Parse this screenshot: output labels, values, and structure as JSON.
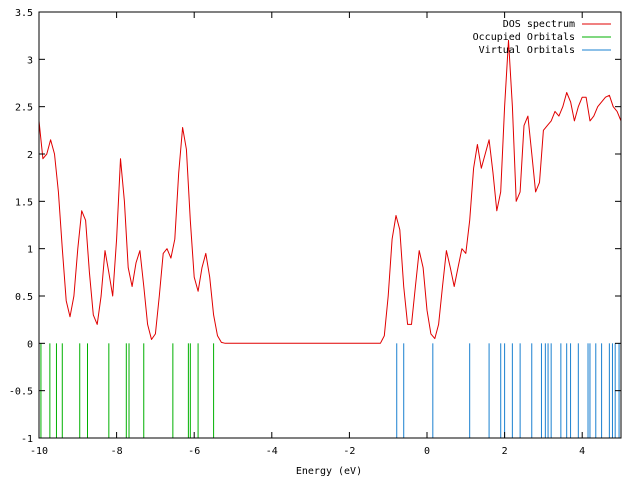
{
  "chart_data": {
    "type": "line",
    "xlabel": "Energy (eV)",
    "ylabel": "",
    "xlim": [
      -10,
      5
    ],
    "ylim": [
      -1,
      3.5
    ],
    "x_ticks": [
      -10,
      -8,
      -6,
      -4,
      -2,
      0,
      2,
      4
    ],
    "x_tick_labels": [
      "-10",
      "-8",
      "-6",
      "-4",
      "-2",
      "0",
      "2",
      "4"
    ],
    "y_ticks": [
      -1,
      -0.5,
      0,
      0.5,
      1,
      1.5,
      2,
      2.5,
      3,
      3.5
    ],
    "y_tick_labels": [
      "-1",
      "-0.5",
      "0",
      "0.5",
      "1",
      "1.5",
      "2",
      "2.5",
      "3",
      "3.5"
    ],
    "grid": false,
    "legend_position": "top-right",
    "series": [
      {
        "name": "DOS spectrum",
        "color": "#e00000",
        "kind": "line",
        "x": [
          -10.0,
          -9.9,
          -9.8,
          -9.7,
          -9.6,
          -9.5,
          -9.4,
          -9.3,
          -9.2,
          -9.1,
          -9.0,
          -8.9,
          -8.8,
          -8.7,
          -8.6,
          -8.5,
          -8.4,
          -8.3,
          -8.2,
          -8.1,
          -8.0,
          -7.9,
          -7.8,
          -7.7,
          -7.6,
          -7.5,
          -7.4,
          -7.3,
          -7.2,
          -7.1,
          -7.0,
          -6.9,
          -6.8,
          -6.7,
          -6.6,
          -6.5,
          -6.4,
          -6.3,
          -6.2,
          -6.1,
          -6.0,
          -5.9,
          -5.8,
          -5.7,
          -5.6,
          -5.5,
          -5.4,
          -5.3,
          -5.2,
          -5.0,
          -4.0,
          -3.0,
          -2.0,
          -1.2,
          -1.1,
          -1.0,
          -0.9,
          -0.8,
          -0.7,
          -0.6,
          -0.5,
          -0.4,
          -0.3,
          -0.2,
          -0.1,
          0.0,
          0.1,
          0.2,
          0.3,
          0.4,
          0.5,
          0.6,
          0.7,
          0.8,
          0.9,
          1.0,
          1.1,
          1.2,
          1.3,
          1.4,
          1.5,
          1.6,
          1.7,
          1.8,
          1.9,
          2.0,
          2.1,
          2.2,
          2.3,
          2.4,
          2.5,
          2.6,
          2.7,
          2.8,
          2.9,
          3.0,
          3.1,
          3.2,
          3.3,
          3.4,
          3.5,
          3.6,
          3.7,
          3.8,
          3.9,
          4.0,
          4.1,
          4.2,
          4.3,
          4.4,
          4.5,
          4.6,
          4.7,
          4.8,
          4.9,
          5.0
        ],
        "y": [
          2.35,
          1.95,
          2.0,
          2.15,
          2.0,
          1.6,
          1.0,
          0.45,
          0.28,
          0.5,
          1.0,
          1.4,
          1.3,
          0.75,
          0.3,
          0.2,
          0.5,
          0.98,
          0.75,
          0.5,
          1.1,
          1.95,
          1.5,
          0.8,
          0.6,
          0.85,
          0.98,
          0.6,
          0.2,
          0.04,
          0.1,
          0.5,
          0.95,
          1.0,
          0.9,
          1.1,
          1.8,
          2.28,
          2.05,
          1.3,
          0.7,
          0.55,
          0.8,
          0.95,
          0.7,
          0.3,
          0.08,
          0.01,
          0.0,
          0.0,
          0.0,
          0.0,
          0.0,
          0.0,
          0.08,
          0.5,
          1.1,
          1.35,
          1.2,
          0.6,
          0.2,
          0.2,
          0.6,
          0.98,
          0.8,
          0.35,
          0.1,
          0.05,
          0.2,
          0.6,
          0.98,
          0.8,
          0.6,
          0.8,
          1.0,
          0.95,
          1.3,
          1.85,
          2.1,
          1.85,
          2.0,
          2.15,
          1.8,
          1.4,
          1.6,
          2.5,
          3.2,
          2.5,
          1.5,
          1.6,
          2.3,
          2.4,
          2.0,
          1.6,
          1.7,
          2.25,
          2.3,
          2.35,
          2.45,
          2.4,
          2.5,
          2.65,
          2.55,
          2.35,
          2.5,
          2.6,
          2.6,
          2.35,
          2.4,
          2.5,
          2.55,
          2.6,
          2.62,
          2.5,
          2.45,
          2.35
        ]
      },
      {
        "name": "Occupied Orbitals",
        "color": "#00b000",
        "kind": "impulses",
        "x": [
          -9.95,
          -9.72,
          -9.55,
          -9.4,
          -8.95,
          -8.75,
          -8.2,
          -7.75,
          -7.68,
          -7.3,
          -6.55,
          -6.15,
          -6.1,
          -5.9,
          -5.5
        ]
      },
      {
        "name": "Virtual Orbitals",
        "color": "#1a80d0",
        "kind": "impulses",
        "x": [
          -0.78,
          -0.6,
          0.15,
          1.1,
          1.6,
          1.9,
          2.0,
          2.2,
          2.4,
          2.7,
          2.95,
          3.05,
          3.12,
          3.2,
          3.45,
          3.6,
          3.7,
          3.9,
          4.15,
          4.2,
          4.35,
          4.5,
          4.7,
          4.78,
          4.85,
          4.95
        ]
      }
    ]
  }
}
